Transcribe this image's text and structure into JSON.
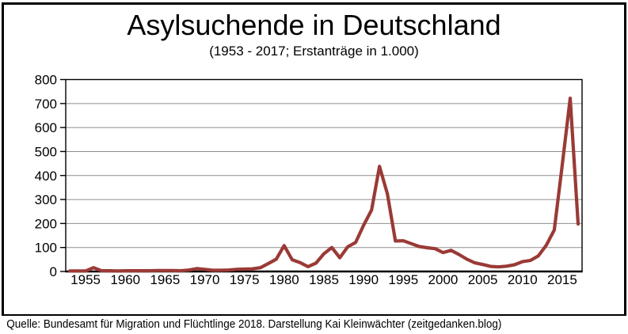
{
  "title": "Asylsuchende in Deutschland",
  "subtitle": "(1953 - 2017; Erstanträge in 1.000)",
  "source": "Quelle: Bundesamt für Migration und Flüchtlinge 2018. Darstellung Kai Kleinwächter (zeitgedanken.blog)",
  "chart_data": {
    "type": "line",
    "title": "Asylsuchende in Deutschland",
    "subtitle": "(1953 - 2017; Erstanträge in 1.000)",
    "series_name": "Erstanträge in 1.000",
    "x": [
      1953,
      1954,
      1955,
      1956,
      1957,
      1958,
      1959,
      1960,
      1961,
      1962,
      1963,
      1964,
      1965,
      1966,
      1967,
      1968,
      1969,
      1970,
      1971,
      1972,
      1973,
      1974,
      1975,
      1976,
      1977,
      1978,
      1979,
      1980,
      1981,
      1982,
      1983,
      1984,
      1985,
      1986,
      1987,
      1988,
      1989,
      1990,
      1991,
      1992,
      1993,
      1994,
      1995,
      1996,
      1997,
      1998,
      1999,
      2000,
      2001,
      2002,
      2003,
      2004,
      2005,
      2006,
      2007,
      2008,
      2009,
      2010,
      2011,
      2012,
      2013,
      2014,
      2015,
      2016,
      2017
    ],
    "values": [
      2,
      2,
      2,
      16,
      3,
      3,
      2,
      3,
      3,
      3,
      3,
      4,
      4,
      4,
      3,
      6,
      12,
      9,
      5,
      5,
      6,
      9,
      10,
      11,
      16,
      33,
      51,
      108,
      49,
      37,
      20,
      35,
      74,
      100,
      57,
      103,
      121,
      193,
      256,
      438,
      323,
      127,
      128,
      116,
      104,
      99,
      95,
      79,
      88,
      71,
      51,
      36,
      29,
      21,
      19,
      22,
      28,
      41,
      46,
      65,
      110,
      173,
      442,
      722,
      198
    ],
    "xticks": [
      1955,
      1960,
      1965,
      1970,
      1975,
      1980,
      1985,
      1990,
      1995,
      2000,
      2005,
      2010,
      2015
    ],
    "yticks": [
      0,
      100,
      200,
      300,
      400,
      500,
      600,
      700,
      800
    ],
    "ylim": [
      0,
      800
    ],
    "ytick_interval": 100,
    "xlabel": "",
    "ylabel": "",
    "grid": true,
    "legend_position": "none",
    "line_color": "#9A3A36",
    "grid_color": "#8E8E8E",
    "axis_color": "#000000",
    "background_color": "#FFFFFF"
  }
}
